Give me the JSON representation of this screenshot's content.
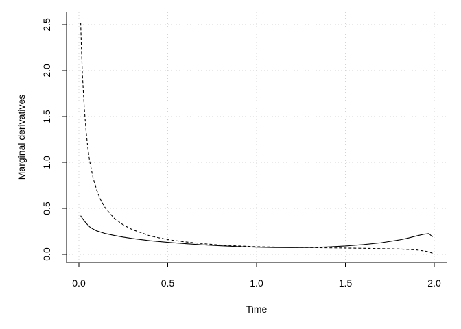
{
  "chart_data": {
    "type": "line",
    "title": "",
    "xlabel": "Time",
    "ylabel": "Marginal derivatives",
    "xlim": [
      0,
      2
    ],
    "ylim": [
      0,
      2.5
    ],
    "xticks": [
      0.0,
      0.5,
      1.0,
      1.5,
      2.0
    ],
    "xtick_labels": [
      "0.0",
      "0.5",
      "1.0",
      "1.5",
      "2.0"
    ],
    "yticks": [
      0.0,
      0.5,
      1.0,
      1.5,
      2.0,
      2.5
    ],
    "ytick_labels": [
      "0.0",
      "0.5",
      "1.0",
      "1.5",
      "2.0",
      "2.5"
    ],
    "grid": true,
    "grid_style": "dotted",
    "legend": "none",
    "series": [
      {
        "style": "solid",
        "color": "#000000",
        "x": [
          0.01,
          0.02,
          0.04,
          0.06,
          0.08,
          0.1,
          0.15,
          0.2,
          0.25,
          0.3,
          0.4,
          0.5,
          0.6,
          0.7,
          0.8,
          0.9,
          1.0,
          1.1,
          1.2,
          1.3,
          1.4,
          1.5,
          1.6,
          1.7,
          1.8,
          1.85,
          1.9,
          1.94,
          1.97,
          1.99
        ],
        "y": [
          0.42,
          0.39,
          0.34,
          0.3,
          0.275,
          0.255,
          0.225,
          0.205,
          0.187,
          0.172,
          0.148,
          0.13,
          0.115,
          0.102,
          0.092,
          0.083,
          0.077,
          0.073,
          0.072,
          0.074,
          0.08,
          0.09,
          0.105,
          0.125,
          0.155,
          0.175,
          0.2,
          0.218,
          0.225,
          0.19
        ]
      },
      {
        "style": "dashed",
        "color": "#000000",
        "x": [
          0.01,
          0.015,
          0.02,
          0.03,
          0.04,
          0.05,
          0.06,
          0.08,
          0.1,
          0.12,
          0.15,
          0.2,
          0.25,
          0.3,
          0.4,
          0.5,
          0.6,
          0.7,
          0.8,
          0.9,
          1.0,
          1.2,
          1.4,
          1.6,
          1.8,
          1.9,
          1.95,
          1.98,
          1.99
        ],
        "y": [
          2.52,
          2.2,
          1.95,
          1.6,
          1.35,
          1.16,
          1.02,
          0.83,
          0.7,
          0.6,
          0.5,
          0.39,
          0.32,
          0.27,
          0.2,
          0.16,
          0.135,
          0.115,
          0.1,
          0.09,
          0.082,
          0.075,
          0.07,
          0.065,
          0.058,
          0.048,
          0.035,
          0.02,
          0.012
        ]
      }
    ]
  }
}
